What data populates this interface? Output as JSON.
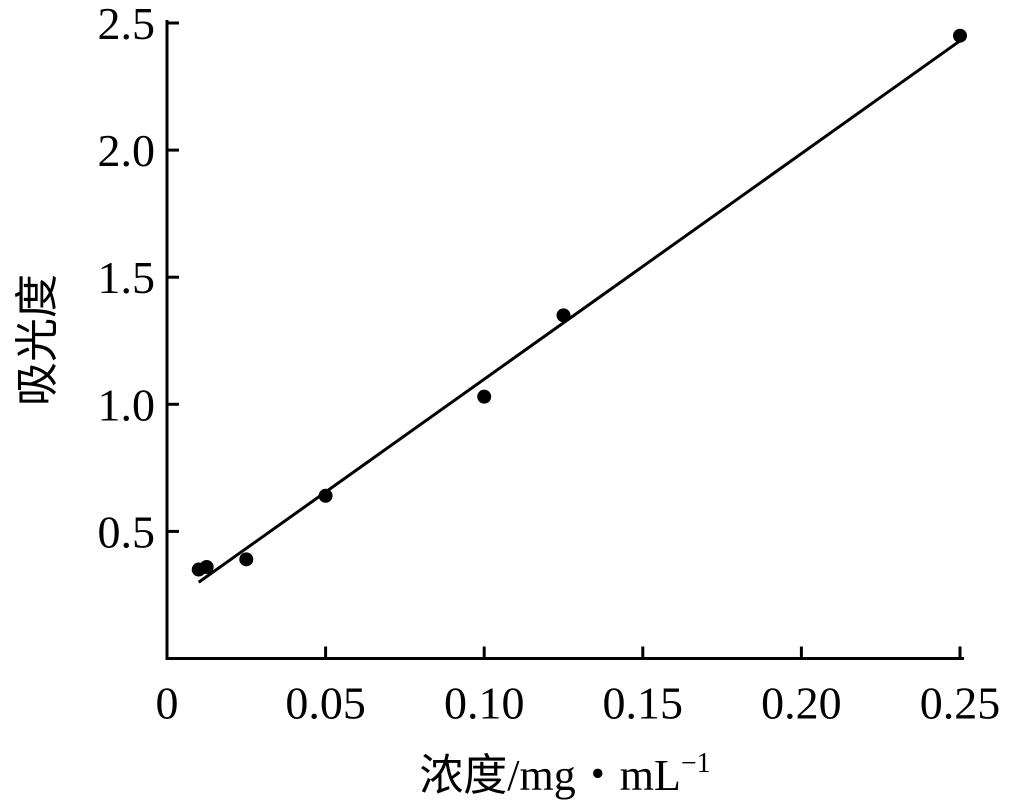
{
  "chart_data": {
    "type": "scatter",
    "xlabel": "浓度/mg・mL",
    "xlabel_superscript": "−1",
    "ylabel": "吸光度",
    "xlim": [
      0,
      0.25
    ],
    "ylim": [
      0,
      2.5
    ],
    "x_ticks": [
      0,
      0.05,
      0.1,
      0.15,
      0.2,
      0.25
    ],
    "x_tick_labels": [
      "0",
      "0.05",
      "0.10",
      "0.15",
      "0.20",
      "0.25"
    ],
    "y_ticks": [
      0.5,
      1.0,
      1.5,
      2.0,
      2.5
    ],
    "y_tick_labels": [
      "0.5",
      "1.0",
      "1.5",
      "2.0",
      "2.5"
    ],
    "grid": false,
    "series": [
      {
        "points": [
          {
            "x": 0.01,
            "y": 0.35
          },
          {
            "x": 0.0125,
            "y": 0.36
          },
          {
            "x": 0.025,
            "y": 0.39
          },
          {
            "x": 0.05,
            "y": 0.64
          },
          {
            "x": 0.1,
            "y": 1.03
          },
          {
            "x": 0.125,
            "y": 1.35
          },
          {
            "x": 0.25,
            "y": 2.45
          }
        ]
      }
    ],
    "fit_line": {
      "x": [
        0.01,
        0.25
      ],
      "y": [
        0.3,
        2.43
      ]
    }
  }
}
